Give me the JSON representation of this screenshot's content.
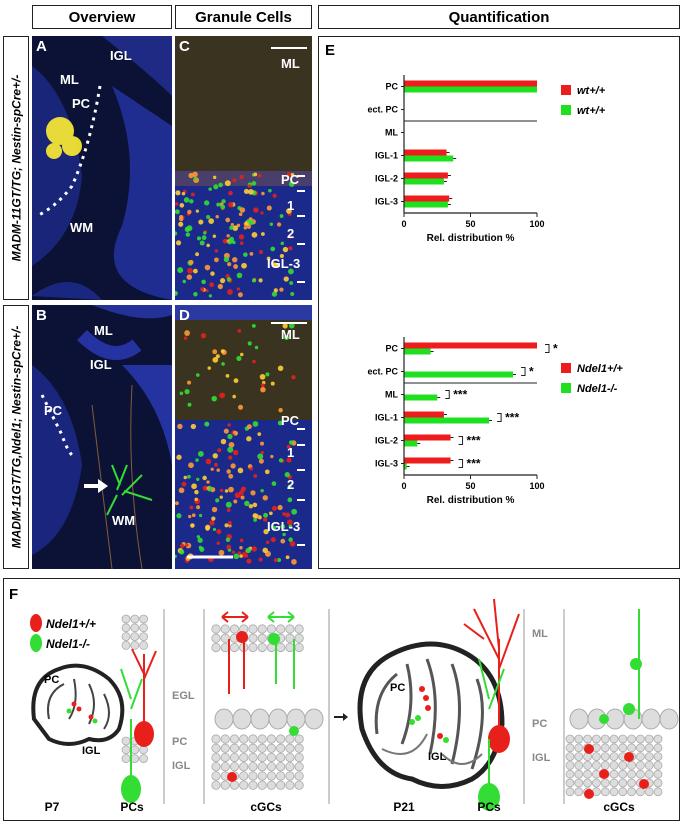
{
  "headers": {
    "overview": "Overview",
    "granule": "Granule Cells",
    "quant": "Quantification"
  },
  "side_labels": {
    "top": "MADM-11GT/TG; Nestin-spCre+/-",
    "bottom": "MADM-11GT/TG,Ndel1; Nestin-spCre+/-"
  },
  "panel_letters": {
    "a": "A",
    "b": "B",
    "c": "C",
    "d": "D",
    "e": "E",
    "f": "F"
  },
  "panelA": {
    "igl": "IGL",
    "ml": "ML",
    "pc": "PC",
    "wm": "WM"
  },
  "panelB": {
    "ml": "ML",
    "igl": "IGL",
    "pc": "PC",
    "wm": "WM"
  },
  "panelC": {
    "ml": "ML",
    "pc": "PC",
    "l1": "1",
    "l2": "2",
    "igl3": "IGL-3"
  },
  "panelD": {
    "ml": "ML",
    "pc": "PC",
    "l1": "1",
    "l2": "2",
    "igl3": "IGL-3"
  },
  "chart_data": [
    {
      "type": "bar",
      "orientation": "horizontal",
      "categories": [
        "PC",
        "ect. PC",
        "ML",
        "IGL-1",
        "IGL-2",
        "IGL-3"
      ],
      "series": [
        {
          "name": "wt+/+",
          "color": "#ee1c1c",
          "values": [
            100,
            0,
            0,
            32,
            33,
            34
          ]
        },
        {
          "name": "wt+/+",
          "color": "#1fe01f",
          "values": [
            100,
            0,
            0,
            37,
            30,
            33
          ]
        }
      ],
      "xlabel": "Rel. distribution %",
      "xticks": [
        0,
        50,
        100
      ],
      "xlim": [
        0,
        100
      ],
      "legend": "right",
      "significance": []
    },
    {
      "type": "bar",
      "orientation": "horizontal",
      "categories": [
        "PC",
        "ect. PC",
        "ML",
        "IGL-1",
        "IGL-2",
        "IGL-3"
      ],
      "series": [
        {
          "name": "Ndel1+/+",
          "color": "#ee1c1c",
          "values": [
            100,
            0,
            0,
            30,
            35,
            35
          ]
        },
        {
          "name": "Ndel1-/-",
          "color": "#1fe01f",
          "values": [
            20,
            82,
            25,
            64,
            10,
            2
          ]
        }
      ],
      "xlabel": "Rel. distribution %",
      "xticks": [
        0,
        50,
        100
      ],
      "xlim": [
        0,
        100
      ],
      "legend": "right",
      "significance": [
        "*",
        "*",
        "***",
        "***",
        "***",
        "***"
      ]
    }
  ],
  "schematic": {
    "legend": [
      "Ndel1+/+",
      "Ndel1-/-"
    ],
    "labels": {
      "pc": "PC",
      "igl": "IGL",
      "egl": "EGL",
      "ml": "ML"
    },
    "bottom": [
      "P7",
      "PCs",
      "cGCs",
      "P21",
      "PCs",
      "cGCs"
    ],
    "colors": {
      "wt": "#e8201c",
      "ko": "#33dd33"
    }
  }
}
